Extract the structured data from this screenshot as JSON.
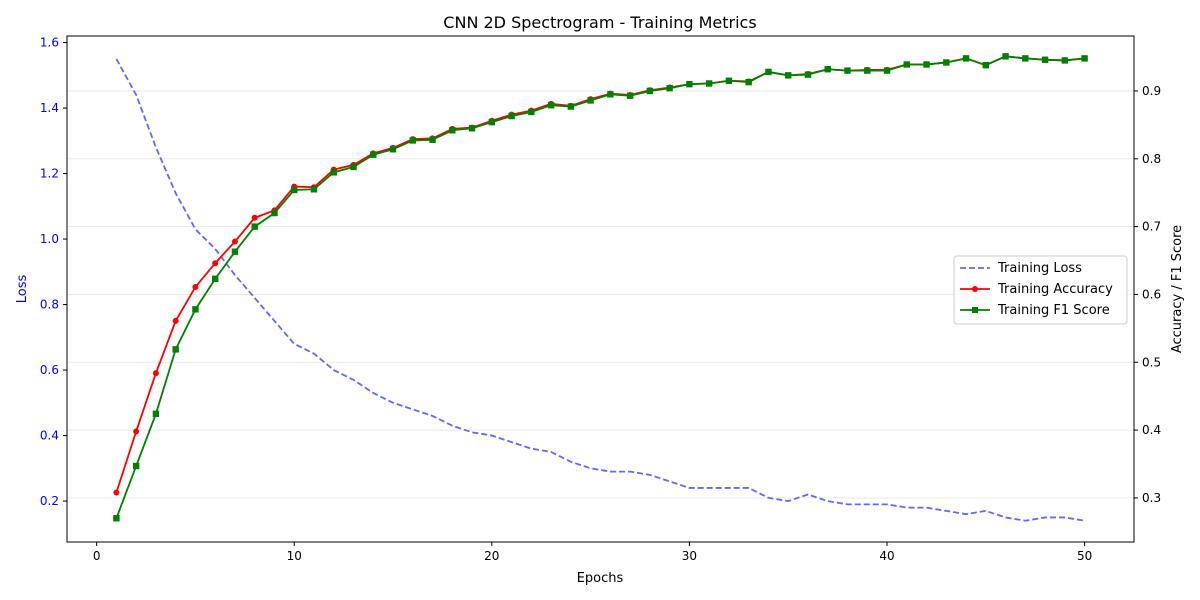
{
  "chart_data": {
    "type": "line",
    "title": "CNN 2D Spectrogram - Training Metrics",
    "xlabel": "Epochs",
    "ylabel_left": "Loss",
    "ylabel_right": "Accuracy / F1 Score",
    "xlim": [
      -1.5,
      52.5
    ],
    "ylim_left": [
      0.075,
      1.62
    ],
    "ylim_right": [
      0.235,
      0.981
    ],
    "x_ticks": [
      0,
      10,
      20,
      30,
      40,
      50
    ],
    "y_left_ticks": [
      0.2,
      0.4,
      0.6,
      0.8,
      1.0,
      1.2,
      1.4,
      1.6
    ],
    "y_right_ticks": [
      0.3,
      0.4,
      0.5,
      0.6,
      0.7,
      0.8,
      0.9
    ],
    "grid": "right-axis horizontal",
    "legend_position": "center-right",
    "x": [
      1,
      2,
      3,
      4,
      5,
      6,
      7,
      8,
      9,
      10,
      11,
      12,
      13,
      14,
      15,
      16,
      17,
      18,
      19,
      20,
      21,
      22,
      23,
      24,
      25,
      26,
      27,
      28,
      29,
      30,
      31,
      32,
      33,
      34,
      35,
      36,
      37,
      38,
      39,
      40,
      41,
      42,
      43,
      44,
      45,
      46,
      47,
      48,
      49,
      50
    ],
    "series": [
      {
        "name": "Training Loss",
        "axis": "left",
        "color": "#6666ff",
        "style": "dashed",
        "marker": "none",
        "values": [
          1.55,
          1.44,
          1.28,
          1.14,
          1.03,
          0.97,
          0.89,
          0.82,
          0.75,
          0.68,
          0.65,
          0.6,
          0.57,
          0.53,
          0.5,
          0.48,
          0.46,
          0.43,
          0.41,
          0.4,
          0.38,
          0.36,
          0.35,
          0.32,
          0.3,
          0.29,
          0.29,
          0.28,
          0.26,
          0.24,
          0.24,
          0.24,
          0.24,
          0.21,
          0.2,
          0.22,
          0.2,
          0.19,
          0.19,
          0.19,
          0.18,
          0.18,
          0.17,
          0.16,
          0.17,
          0.15,
          0.14,
          0.15,
          0.15,
          0.14
        ]
      },
      {
        "name": "Training Accuracy",
        "axis": "right",
        "color": "#ff0000",
        "style": "solid",
        "marker": "circle",
        "values": [
          0.308,
          0.398,
          0.484,
          0.561,
          0.611,
          0.646,
          0.678,
          0.713,
          0.724,
          0.759,
          0.758,
          0.784,
          0.791,
          0.808,
          0.816,
          0.829,
          0.83,
          0.844,
          0.846,
          0.856,
          0.865,
          0.871,
          0.881,
          0.878,
          0.888,
          0.896,
          0.894,
          0.901,
          0.905,
          0.91,
          0.911,
          0.915,
          0.914,
          0.928,
          0.923,
          0.925,
          0.932,
          0.93,
          0.931,
          0.931,
          0.939,
          0.939,
          0.942,
          0.948,
          0.938,
          0.951,
          0.948,
          0.946,
          0.945,
          0.948
        ]
      },
      {
        "name": "Training F1 Score",
        "axis": "right",
        "color": "#008000",
        "style": "solid",
        "marker": "square",
        "values": [
          0.27,
          0.347,
          0.424,
          0.519,
          0.578,
          0.623,
          0.663,
          0.7,
          0.72,
          0.754,
          0.755,
          0.78,
          0.788,
          0.806,
          0.814,
          0.827,
          0.828,
          0.842,
          0.845,
          0.854,
          0.863,
          0.869,
          0.879,
          0.877,
          0.886,
          0.895,
          0.893,
          0.9,
          0.904,
          0.91,
          0.911,
          0.915,
          0.913,
          0.928,
          0.923,
          0.924,
          0.932,
          0.93,
          0.93,
          0.93,
          0.939,
          0.939,
          0.942,
          0.948,
          0.938,
          0.951,
          0.948,
          0.946,
          0.945,
          0.948
        ]
      }
    ]
  }
}
